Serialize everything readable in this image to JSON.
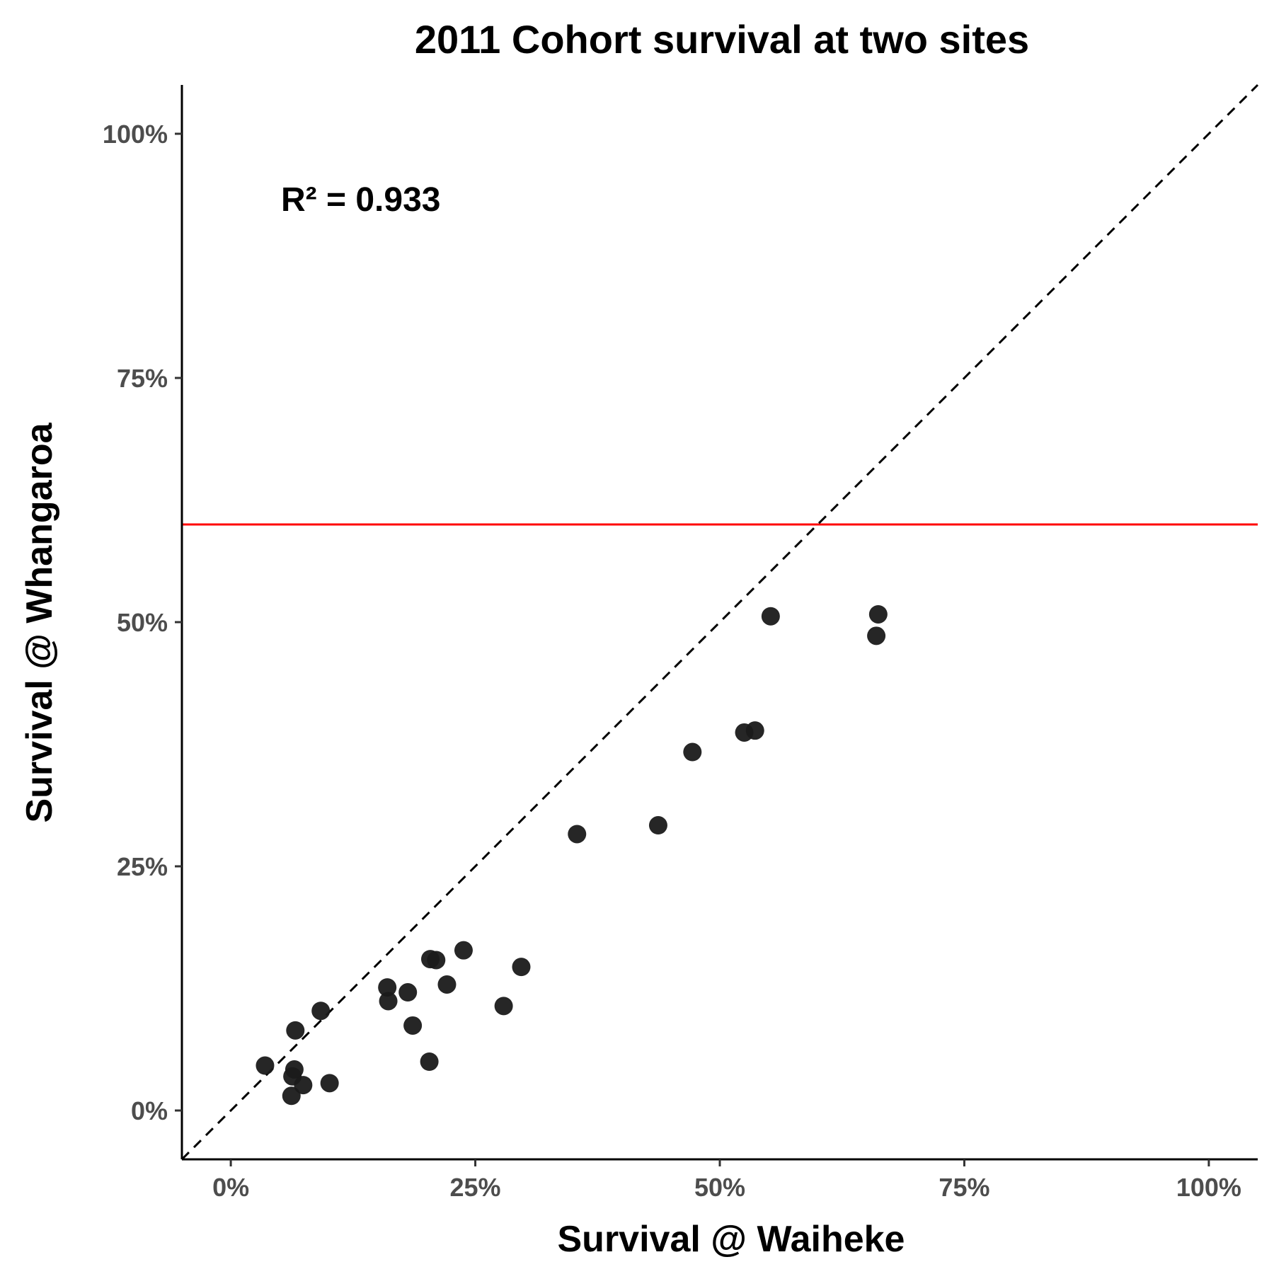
{
  "chart_data": {
    "type": "scatter",
    "title": "2011 Cohort survival at two sites",
    "xlabel": "Survival @ Waiheke",
    "ylabel": "Survival @ Whangaroa",
    "annotation": "R² = 0.933",
    "xlim": [
      -0.05,
      1.05
    ],
    "ylim": [
      -0.05,
      1.05
    ],
    "xticks": [
      0,
      0.25,
      0.5,
      0.75,
      1.0
    ],
    "yticks": [
      0,
      0.25,
      0.5,
      0.75,
      1.0
    ],
    "xtick_labels": [
      "0%",
      "25%",
      "50%",
      "75%",
      "100%"
    ],
    "ytick_labels": [
      "0%",
      "25%",
      "50%",
      "75%",
      "100%"
    ],
    "grid": false,
    "reference_lines": {
      "identity_line": {
        "slope": 1,
        "intercept": 0,
        "style": "dashed",
        "color": "#000000"
      },
      "horizontal_line": {
        "y": 0.6,
        "color": "#ff0000"
      }
    },
    "point_color": "#1a1a1a",
    "points": [
      {
        "x": 0.035,
        "y": 0.046
      },
      {
        "x": 0.062,
        "y": 0.015
      },
      {
        "x": 0.063,
        "y": 0.035
      },
      {
        "x": 0.065,
        "y": 0.042
      },
      {
        "x": 0.066,
        "y": 0.082
      },
      {
        "x": 0.074,
        "y": 0.026
      },
      {
        "x": 0.092,
        "y": 0.102
      },
      {
        "x": 0.101,
        "y": 0.028
      },
      {
        "x": 0.16,
        "y": 0.126
      },
      {
        "x": 0.161,
        "y": 0.112
      },
      {
        "x": 0.181,
        "y": 0.121
      },
      {
        "x": 0.186,
        "y": 0.087
      },
      {
        "x": 0.203,
        "y": 0.05
      },
      {
        "x": 0.204,
        "y": 0.155
      },
      {
        "x": 0.21,
        "y": 0.154
      },
      {
        "x": 0.221,
        "y": 0.129
      },
      {
        "x": 0.238,
        "y": 0.164
      },
      {
        "x": 0.279,
        "y": 0.107
      },
      {
        "x": 0.297,
        "y": 0.147
      },
      {
        "x": 0.354,
        "y": 0.283
      },
      {
        "x": 0.437,
        "y": 0.292
      },
      {
        "x": 0.472,
        "y": 0.367
      },
      {
        "x": 0.525,
        "y": 0.387
      },
      {
        "x": 0.536,
        "y": 0.389
      },
      {
        "x": 0.552,
        "y": 0.506
      },
      {
        "x": 0.66,
        "y": 0.486
      },
      {
        "x": 0.662,
        "y": 0.508
      }
    ]
  }
}
